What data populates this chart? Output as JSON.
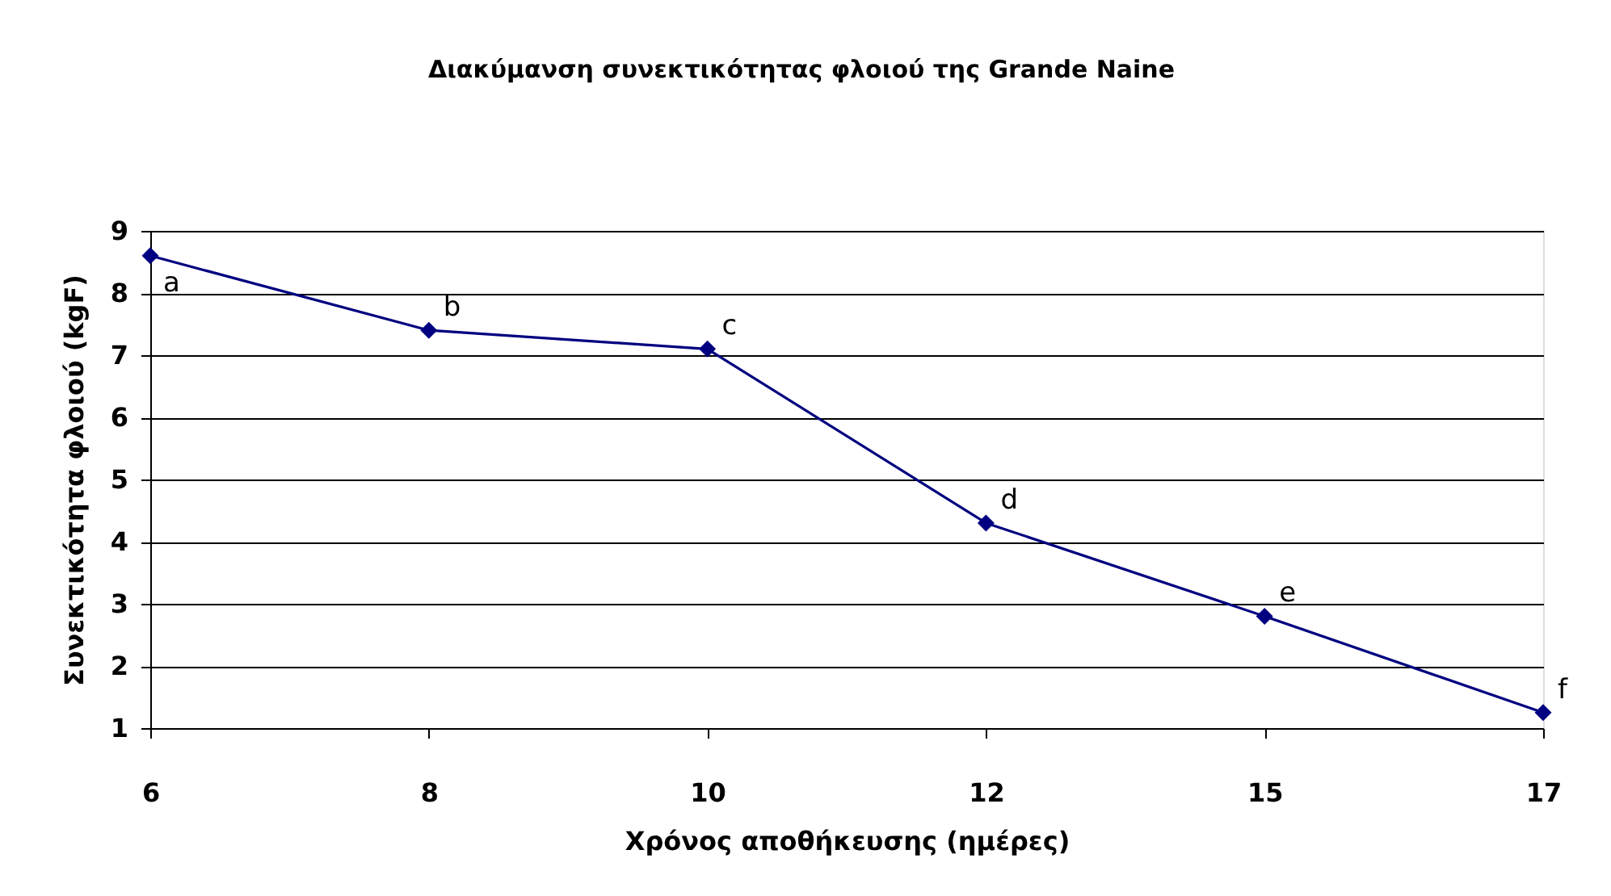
{
  "chart_data": {
    "type": "line",
    "title": "Διακύμανση συνεκτικότητας φλοιού της Grande Naine",
    "xlabel": "Χρόνος αποθήκευσης (ημέρες)",
    "ylabel": "Συνεκτικότητα φλοιού (kgF)",
    "categories": [
      "6",
      "8",
      "10",
      "12",
      "15",
      "17"
    ],
    "series": [
      {
        "color": "#000080",
        "values": [
          8.6,
          7.4,
          7.1,
          4.3,
          2.8,
          1.25
        ]
      }
    ],
    "ylim": [
      1,
      9
    ],
    "yticks": [
      1,
      2,
      3,
      4,
      5,
      6,
      7,
      8,
      9
    ],
    "grid": "y",
    "marker": "diamond",
    "line_style": "solid",
    "annotations": [
      {
        "text": "a",
        "x": "6",
        "y": 8.6
      },
      {
        "text": "b",
        "x": "8",
        "y": 7.4
      },
      {
        "text": "c",
        "x": "10",
        "y": 7.1
      },
      {
        "text": "d",
        "x": "12",
        "y": 4.3
      },
      {
        "text": "e",
        "x": "15",
        "y": 2.8
      },
      {
        "text": "f",
        "x": "17",
        "y": 1.25
      }
    ]
  }
}
